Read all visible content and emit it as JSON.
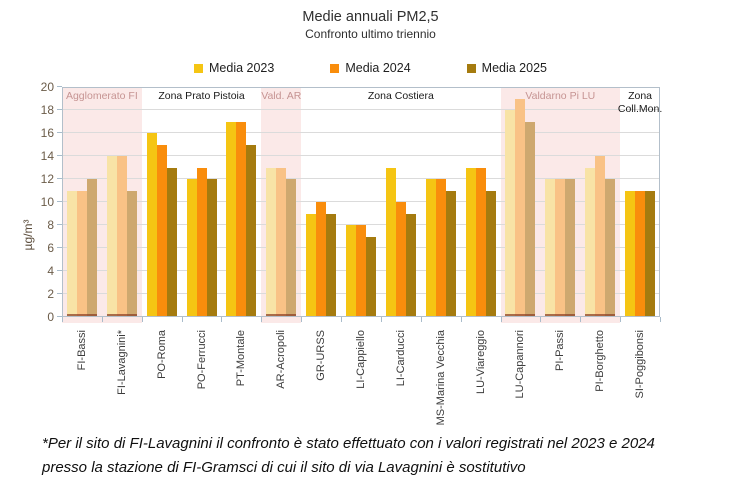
{
  "title": "Medie annuali PM2,5",
  "subtitle": "Confronto ultimo triennio",
  "footnote": "*Per il sito di FI-Lavagnini il confronto è stato effettuato con i valori registrati nel 2023 e 2024 presso la stazione di FI-Gramsci di cui il sito di via Lavagnini è sostitutivo",
  "chart_data": {
    "type": "bar",
    "title": "Medie annuali PM2,5",
    "subtitle": "Confronto ultimo triennio",
    "ylabel": "µg/m³",
    "ylim": [
      0,
      20
    ],
    "ytick_step": 2,
    "grid": true,
    "legend_position": "top",
    "series": [
      "Media 2023",
      "Media 2024",
      "Media 2025"
    ],
    "series_colors": [
      "#F5C513",
      "#F98D0C",
      "#A57B0F"
    ],
    "series_colors_faded": [
      "#F8E3A6",
      "#F9C286",
      "#CEA86F"
    ],
    "highlight_background": "#FBE9E8",
    "highlight_label_color": "#C69493",
    "zones": [
      {
        "label": "Agglomerato FI",
        "highlighted": true,
        "stations": [
          {
            "name": "FI-Bassi",
            "values": [
              11,
              11,
              12
            ]
          },
          {
            "name": "FI-Lavagnini*",
            "values": [
              14,
              14,
              11
            ]
          }
        ]
      },
      {
        "label": "Zona Prato Pistoia",
        "highlighted": false,
        "stations": [
          {
            "name": "PO-Roma",
            "values": [
              16,
              15,
              13
            ]
          },
          {
            "name": "PO-Ferrucci",
            "values": [
              12,
              13,
              12
            ]
          },
          {
            "name": "PT-Montale",
            "values": [
              17,
              17,
              15
            ]
          }
        ]
      },
      {
        "label": "Vald. AR",
        "highlighted": true,
        "stations": [
          {
            "name": "AR-Acropoli",
            "values": [
              13,
              13,
              12
            ]
          }
        ]
      },
      {
        "label": "Zona Costiera",
        "highlighted": false,
        "stations": [
          {
            "name": "GR-URSS",
            "values": [
              9,
              10,
              9
            ]
          },
          {
            "name": "LI-Cappiello",
            "values": [
              8,
              8,
              7
            ]
          },
          {
            "name": "LI-Carducci",
            "values": [
              13,
              10,
              9
            ]
          },
          {
            "name": "MS-Marina Vecchia",
            "values": [
              12,
              12,
              11
            ]
          },
          {
            "name": "LU-Viareggio",
            "values": [
              13,
              13,
              11
            ]
          }
        ]
      },
      {
        "label": "Valdarno Pi LU",
        "highlighted": true,
        "stations": [
          {
            "name": "LU-Capannori",
            "values": [
              18,
              19,
              17
            ]
          },
          {
            "name": "PI-Passi",
            "values": [
              12,
              12,
              12
            ]
          },
          {
            "name": "PI-Borghetto",
            "values": [
              13,
              14,
              12
            ]
          }
        ]
      },
      {
        "label": "Zona\nColl.Mon.",
        "highlighted": false,
        "stations": [
          {
            "name": "SI-Poggibonsi",
            "values": [
              11,
              11,
              11
            ]
          }
        ]
      }
    ]
  }
}
